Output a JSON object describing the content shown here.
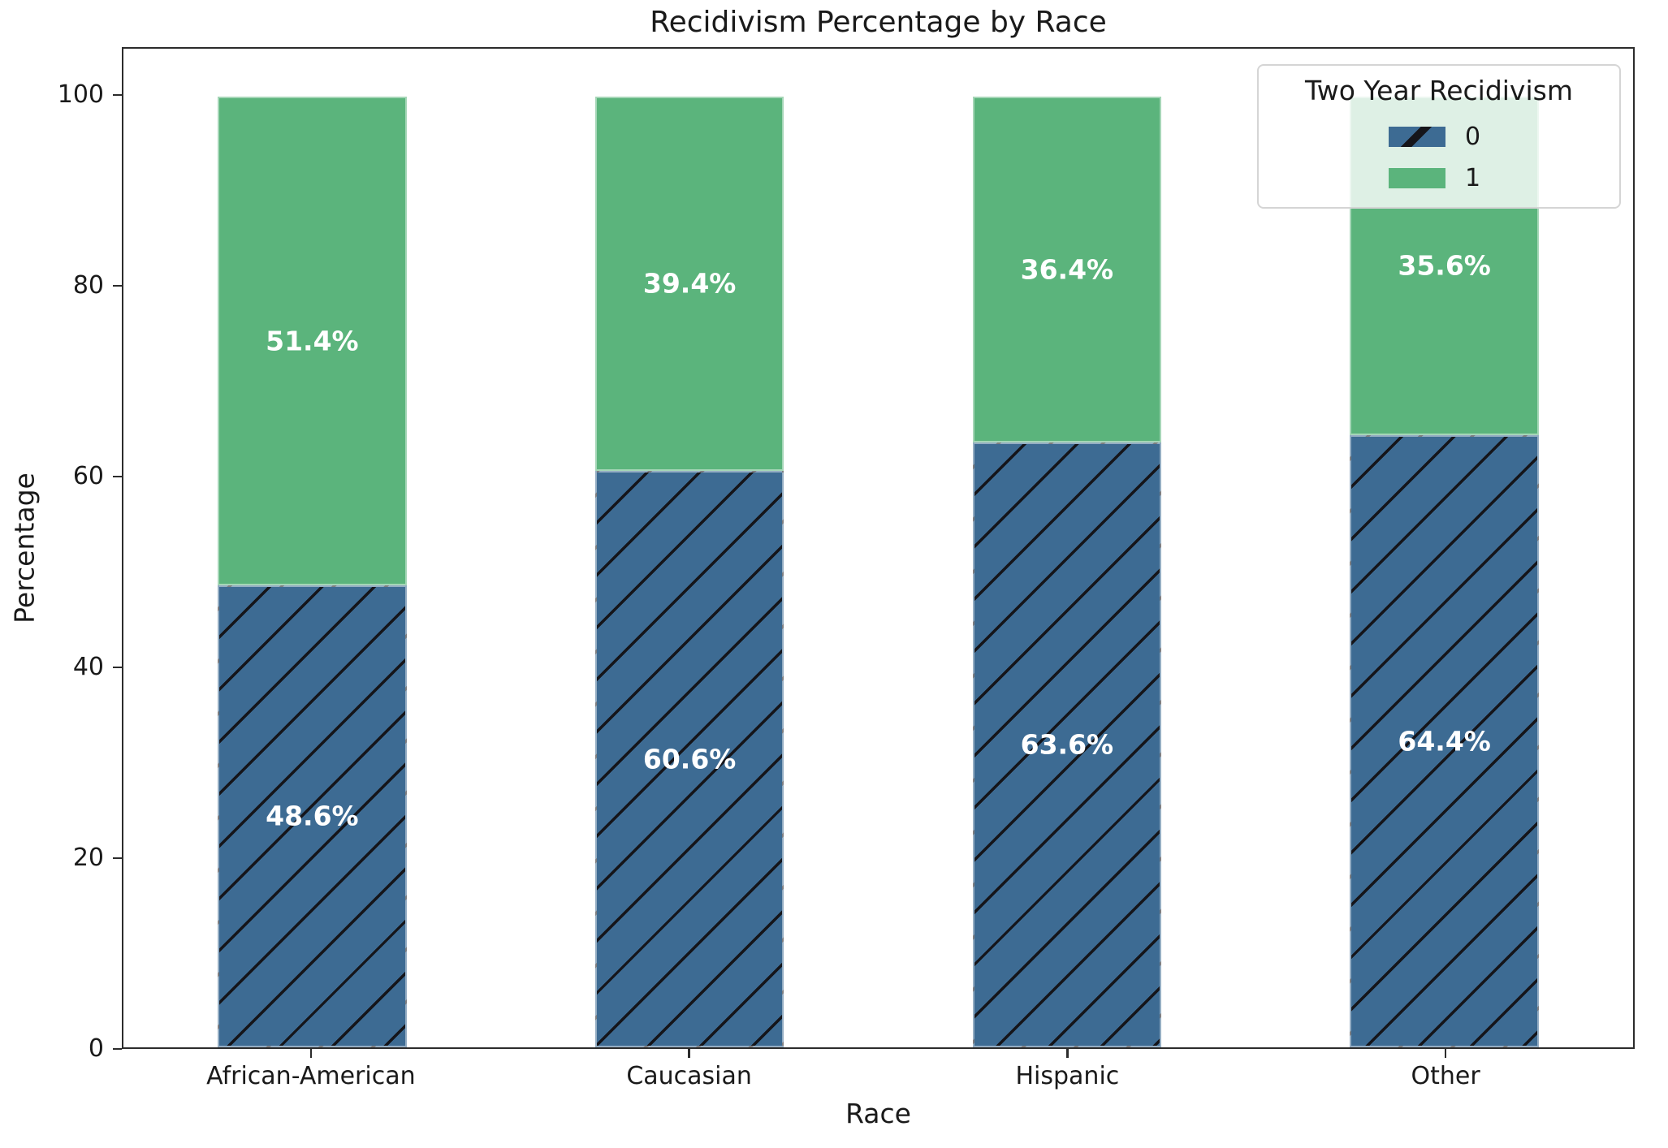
{
  "chart_data": {
    "type": "bar",
    "stacked": true,
    "title": "Recidivism Percentage by Race",
    "xlabel": "Race",
    "ylabel": "Percentage",
    "categories": [
      "African-American",
      "Caucasian",
      "Hispanic",
      "Other"
    ],
    "series": [
      {
        "name": "0",
        "color": "#3d6b93",
        "hatch": "/",
        "values": [
          48.6,
          60.6,
          63.6,
          64.4
        ],
        "labels": [
          "48.6%",
          "60.6%",
          "63.6%",
          "64.4%"
        ]
      },
      {
        "name": "1",
        "color": "#5bb47c",
        "hatch": null,
        "values": [
          51.4,
          39.4,
          36.4,
          35.6
        ],
        "labels": [
          "51.4%",
          "39.4%",
          "36.4%",
          "35.6%"
        ]
      }
    ],
    "y_ticks": [
      0,
      20,
      40,
      60,
      80,
      100
    ],
    "ylim": [
      0,
      105
    ],
    "bar_width_fraction": 0.5,
    "bar_label_color": "#ffffff",
    "grid": false,
    "legend": {
      "title": "Two Year Recidivism",
      "position": "upper right"
    }
  }
}
